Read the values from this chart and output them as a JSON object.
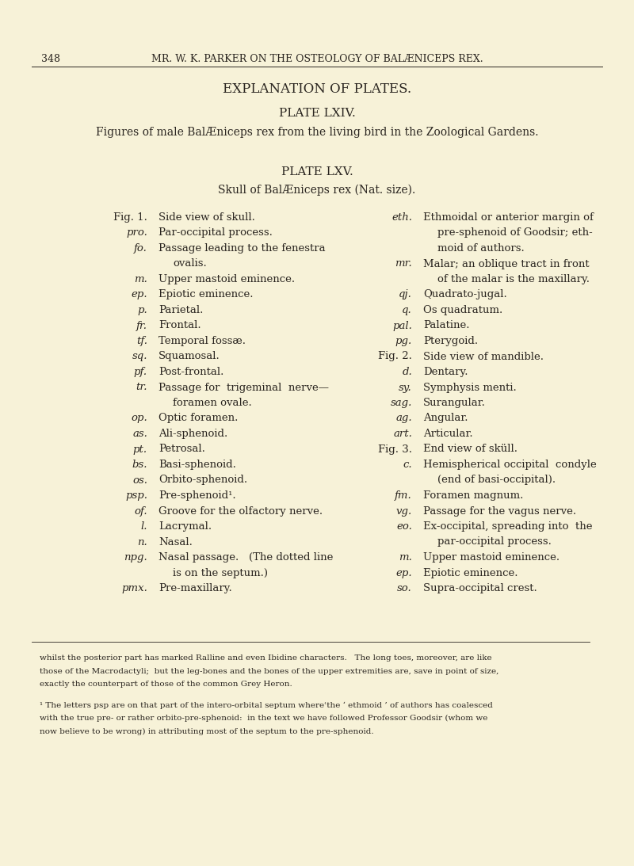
{
  "bg_color": "#f7f2d8",
  "text_color": "#2a2520",
  "header_num": "348",
  "header_text": "MR. W. K. PARKER ON THE OSTEOLOGY OF BALÆNICEPS REX.",
  "title1": "EXPLANATION OF PLATES.",
  "title2": "PLATE LXIV.",
  "subtitle2": "Figures of male BalÆniceps rex from the living bird in the Zoological Gardens.",
  "title3": "PLATE LXV.",
  "subtitle3": "Skull of BalÆniceps rex (Nat. size).",
  "left_col": [
    {
      "abbr": "Fig. 1.",
      "text": "Side view of skull.",
      "fig": true,
      "extra": null
    },
    {
      "abbr": "pro.",
      "text": "Par-occipital process.",
      "fig": false,
      "extra": null
    },
    {
      "abbr": "fo.",
      "text": "Passage leading to the fenestra",
      "fig": false,
      "extra": "ovalis."
    },
    {
      "abbr": "m.",
      "text": "Upper mastoid eminence.",
      "fig": false,
      "extra": null
    },
    {
      "abbr": "ep.",
      "text": "Epiotic eminence.",
      "fig": false,
      "extra": null
    },
    {
      "abbr": "p.",
      "text": "Parietal.",
      "fig": false,
      "extra": null
    },
    {
      "abbr": "fr.",
      "text": "Frontal.",
      "fig": false,
      "extra": null
    },
    {
      "abbr": "tf.",
      "text": "Temporal fossæ.",
      "fig": false,
      "extra": null
    },
    {
      "abbr": "sq.",
      "text": "Squamosal.",
      "fig": false,
      "extra": null
    },
    {
      "abbr": "pf.",
      "text": "Post-frontal.",
      "fig": false,
      "extra": null
    },
    {
      "abbr": "tr.",
      "text": "Passage for  trigeminal  nerve—",
      "fig": false,
      "extra": "foramen ovale."
    },
    {
      "abbr": "op.",
      "text": "Optic foramen.",
      "fig": false,
      "extra": null
    },
    {
      "abbr": "as.",
      "text": "Ali-sphenoid.",
      "fig": false,
      "extra": null
    },
    {
      "abbr": "pt.",
      "text": "Petrosal.",
      "fig": false,
      "extra": null
    },
    {
      "abbr": "bs.",
      "text": "Basi-sphenoid.",
      "fig": false,
      "extra": null
    },
    {
      "abbr": "os.",
      "text": "Orbito-sphenoid.",
      "fig": false,
      "extra": null
    },
    {
      "abbr": "psp.",
      "text": "Pre-sphenoid¹.",
      "fig": false,
      "extra": null
    },
    {
      "abbr": "of.",
      "text": "Groove for the olfactory nerve.",
      "fig": false,
      "extra": null
    },
    {
      "abbr": "l.",
      "text": "Lacrymal.",
      "fig": false,
      "extra": null
    },
    {
      "abbr": "n.",
      "text": "Nasal.",
      "fig": false,
      "extra": null
    },
    {
      "abbr": "npg.",
      "text": "Nasal passage.   (The dotted line",
      "fig": false,
      "extra": "is on the septum.)"
    },
    {
      "abbr": "pmx.",
      "text": "Pre-maxillary.",
      "fig": false,
      "extra": null
    }
  ],
  "right_col": [
    {
      "abbr": "eth.",
      "text": "Ethmoidal or anterior margin of",
      "fig": false,
      "extra2": "pre-sphenoid of Goodsir; eth-",
      "extra3": "moid of authors."
    },
    {
      "abbr": "mr.",
      "text": "Malar; an oblique tract in front",
      "fig": false,
      "extra2": "of the malar is the maxillary.",
      "extra3": null
    },
    {
      "abbr": "qj.",
      "text": "Quadrato-jugal.",
      "fig": false,
      "extra2": null,
      "extra3": null
    },
    {
      "abbr": "q.",
      "text": "Os quadratum.",
      "fig": false,
      "extra2": null,
      "extra3": null
    },
    {
      "abbr": "pal.",
      "text": "Palatine.",
      "fig": false,
      "extra2": null,
      "extra3": null
    },
    {
      "abbr": "pg.",
      "text": "Pterygoid.",
      "fig": false,
      "extra2": null,
      "extra3": null
    },
    {
      "abbr": "Fig. 2.",
      "text": "Side view of mandible.",
      "fig": true,
      "extra2": null,
      "extra3": null
    },
    {
      "abbr": "d.",
      "text": "Dentary.",
      "fig": false,
      "extra2": null,
      "extra3": null
    },
    {
      "abbr": "sy.",
      "text": "Symphysis menti.",
      "fig": false,
      "extra2": null,
      "extra3": null
    },
    {
      "abbr": "sag.",
      "text": "Surangular.",
      "fig": false,
      "extra2": null,
      "extra3": null
    },
    {
      "abbr": "ag.",
      "text": "Angular.",
      "fig": false,
      "extra2": null,
      "extra3": null
    },
    {
      "abbr": "art.",
      "text": "Articular.",
      "fig": false,
      "extra2": null,
      "extra3": null
    },
    {
      "abbr": "Fig. 3.",
      "text": "End view of sküll.",
      "fig": true,
      "extra2": null,
      "extra3": null
    },
    {
      "abbr": "c.",
      "text": "Hemispherical occipital  condyle",
      "fig": false,
      "extra2": "(end of basi-occipital).",
      "extra3": null
    },
    {
      "abbr": "fm.",
      "text": "Foramen magnum.",
      "fig": false,
      "extra2": null,
      "extra3": null
    },
    {
      "abbr": "vg.",
      "text": "Passage for the vagus nerve.",
      "fig": false,
      "extra2": null,
      "extra3": null
    },
    {
      "abbr": "eo.",
      "text": "Ex-occipital, spreading into  the",
      "fig": false,
      "extra2": "par-occipital process.",
      "extra3": null
    },
    {
      "abbr": "m.",
      "text": "Upper mastoid eminence.",
      "fig": false,
      "extra2": null,
      "extra3": null
    },
    {
      "abbr": "ep.",
      "text": "Epiotic eminence.",
      "fig": false,
      "extra2": null,
      "extra3": null
    },
    {
      "abbr": "so.",
      "text": "Supra-occipital crest.",
      "fig": false,
      "extra2": null,
      "extra3": null
    }
  ],
  "footer_lines": [
    "whilst the posterior part has marked Ralline and even Ibidine characters.   The long toes, moreover, are like",
    "those of the Macrodactyli;  but the leg-bones and the bones of the upper extremities are, save in point of size,",
    "exactly the counterpart of those of the common Grey Heron."
  ],
  "footnote_lines": [
    "¹ The letters psp are on that part of the intero-orbital septum whereʿthe ‘ ethmoid ’ of authors has coalesced",
    "with the true pre- or rather orbito-pre-sphenoid:  in the text we have followed Professor Goodsir (whom we",
    "now believe to be wrong) in attributing most of the septum to the pre-sphenoid."
  ]
}
